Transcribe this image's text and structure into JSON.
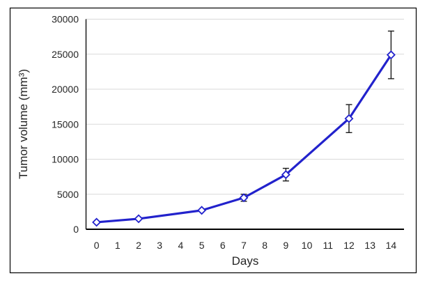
{
  "chart_data": {
    "type": "line",
    "title": "",
    "xlabel": "Days",
    "ylabel": "Tumor volume (mm³)",
    "x": [
      0,
      2,
      5,
      7,
      9,
      12,
      14
    ],
    "series": [
      {
        "name": "Tumor volume",
        "values": [
          1000,
          1500,
          2700,
          4500,
          7800,
          15800,
          24900
        ],
        "error_bars": [
          0,
          0,
          0,
          500,
          900,
          2000,
          3400
        ],
        "color": "#2222CC",
        "marker": "open-diamond"
      }
    ],
    "x_ticks": [
      0,
      1,
      2,
      3,
      4,
      5,
      6,
      7,
      8,
      9,
      10,
      11,
      12,
      13,
      14
    ],
    "y_ticks": [
      0,
      5000,
      10000,
      15000,
      20000,
      25000,
      30000
    ],
    "ylim": [
      0,
      30000
    ],
    "grid": "horizontal",
    "legend": "none",
    "gridline_color": "#D9D9D9",
    "axis_color": "#000000",
    "text_color": "#262626",
    "error_bar_color": "#1A1A1A",
    "background": "#FFFFFF",
    "frame_color": "#000000"
  }
}
